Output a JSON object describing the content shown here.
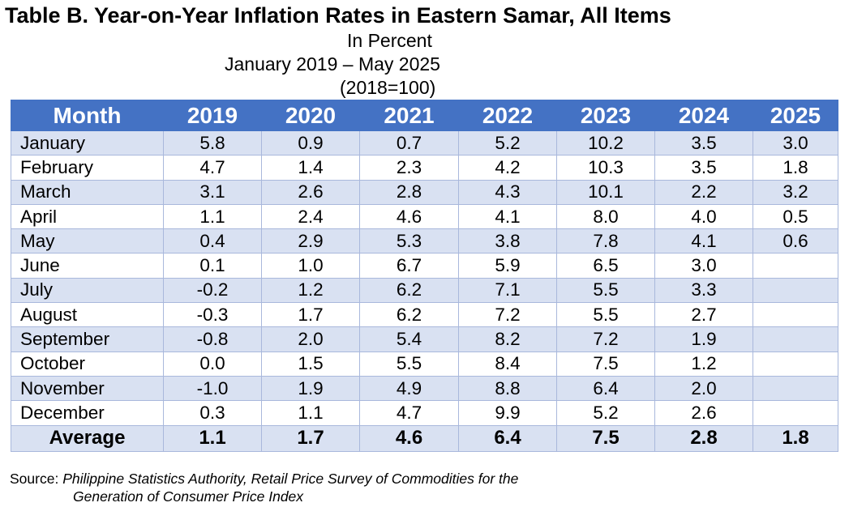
{
  "title": "Table B. Year-on-Year Inflation Rates in Eastern Samar, All Items",
  "subtitle_unit": "In Percent",
  "subtitle_period": "January 2019 – May 2025",
  "subtitle_base": "(2018=100)",
  "table": {
    "headers": [
      "Month",
      "2019",
      "2020",
      "2021",
      "2022",
      "2023",
      "2024",
      "2025"
    ],
    "rows": [
      [
        "January",
        "5.8",
        "0.9",
        "0.7",
        "5.2",
        "10.2",
        "3.5",
        "3.0"
      ],
      [
        "February",
        "4.7",
        "1.4",
        "2.3",
        "4.2",
        "10.3",
        "3.5",
        "1.8"
      ],
      [
        "March",
        "3.1",
        "2.6",
        "2.8",
        "4.3",
        "10.1",
        "2.2",
        "3.2"
      ],
      [
        "April",
        "1.1",
        "2.4",
        "4.6",
        "4.1",
        "8.0",
        "4.0",
        "0.5"
      ],
      [
        "May",
        "0.4",
        "2.9",
        "5.3",
        "3.8",
        "7.8",
        "4.1",
        "0.6"
      ],
      [
        "June",
        "0.1",
        "1.0",
        "6.7",
        "5.9",
        "6.5",
        "3.0",
        ""
      ],
      [
        "July",
        "-0.2",
        "1.2",
        "6.2",
        "7.1",
        "5.5",
        "3.3",
        ""
      ],
      [
        "August",
        "-0.3",
        "1.7",
        "6.2",
        "7.2",
        "5.5",
        "2.7",
        ""
      ],
      [
        "September",
        "-0.8",
        "2.0",
        "5.4",
        "8.2",
        "7.2",
        "1.9",
        ""
      ],
      [
        "October",
        "0.0",
        "1.5",
        "5.5",
        "8.4",
        "7.5",
        "1.2",
        ""
      ],
      [
        "November",
        "-1.0",
        "1.9",
        "4.9",
        "8.8",
        "6.4",
        "2.0",
        ""
      ],
      [
        "December",
        "0.3",
        "1.1",
        "4.7",
        "9.9",
        "5.2",
        "2.6",
        ""
      ]
    ],
    "average": [
      "Average",
      "1.1",
      "1.7",
      "4.6",
      "6.4",
      "7.5",
      "2.8",
      "1.8"
    ]
  },
  "colors": {
    "header_bg": "#4472c4",
    "band_bg": "#d9e1f2"
  },
  "source_label": "Source:",
  "source_line1": "Philippine Statistics Authority, Retail Price Survey of Commodities for the",
  "source_line2": "Generation of Consumer Price Index"
}
